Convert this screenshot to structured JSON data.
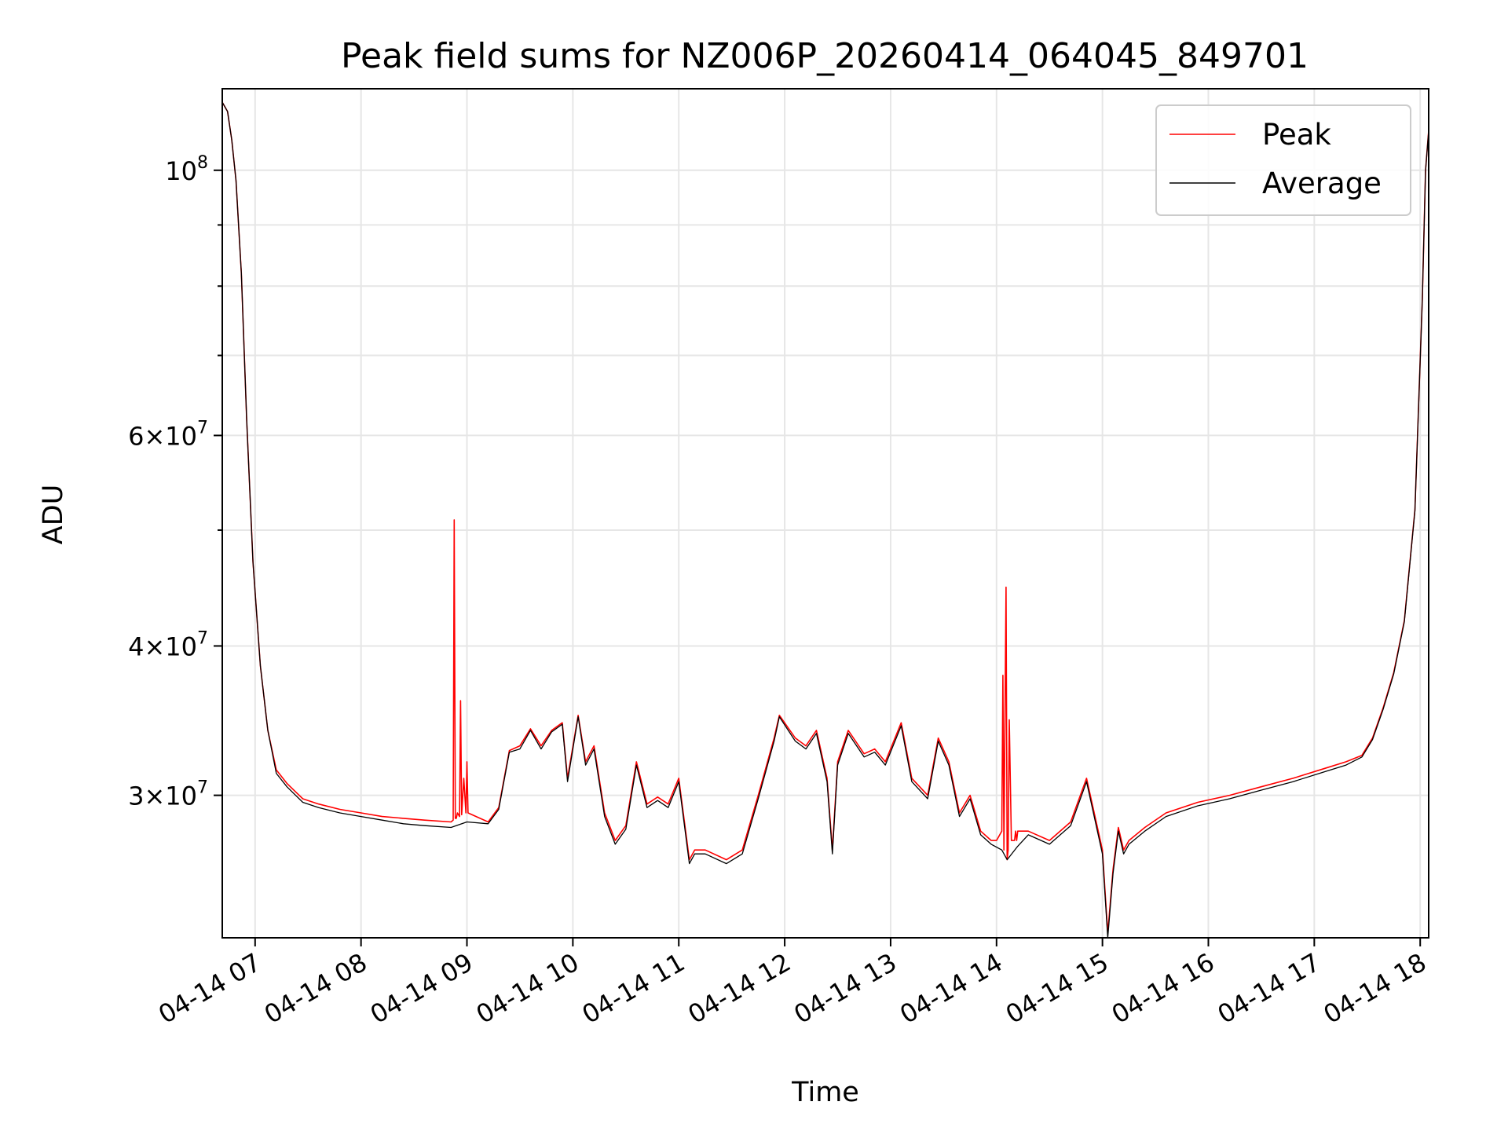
{
  "chart_data": {
    "type": "line",
    "title": "Peak field sums for NZ006P_20260414_064045_849701",
    "xlabel": "Time",
    "ylabel": "ADU",
    "yscale": "log",
    "xlim": [
      6.69,
      18.08
    ],
    "ylim": [
      22800000,
      117000000
    ],
    "grid": true,
    "legend_position": "top-right",
    "x_ticks": [
      {
        "value": 7,
        "label": "04-14 07"
      },
      {
        "value": 8,
        "label": "04-14 08"
      },
      {
        "value": 9,
        "label": "04-14 09"
      },
      {
        "value": 10,
        "label": "04-14 10"
      },
      {
        "value": 11,
        "label": "04-14 11"
      },
      {
        "value": 12,
        "label": "04-14 12"
      },
      {
        "value": 13,
        "label": "04-14 13"
      },
      {
        "value": 14,
        "label": "04-14 14"
      },
      {
        "value": 15,
        "label": "04-14 15"
      },
      {
        "value": 16,
        "label": "04-14 16"
      },
      {
        "value": 17,
        "label": "04-14 17"
      },
      {
        "value": 18,
        "label": "04-14 18"
      }
    ],
    "y_ticks": [
      {
        "value": 100000000,
        "mant": "",
        "base": "10",
        "exp": "8"
      },
      {
        "value": 60000000,
        "mant": "6×",
        "base": "10",
        "exp": "7"
      },
      {
        "value": 40000000,
        "mant": "4×",
        "base": "10",
        "exp": "7"
      },
      {
        "value": 30000000,
        "mant": "3×",
        "base": "10",
        "exp": "7"
      }
    ],
    "y_minor_ticks": [
      50000000,
      70000000,
      80000000,
      90000000
    ],
    "series": [
      {
        "name": "Peak",
        "color": "#ff0000",
        "x": [
          6.69,
          6.74,
          6.78,
          6.82,
          6.87,
          6.92,
          6.98,
          7.05,
          7.12,
          7.2,
          7.3,
          7.45,
          7.6,
          7.8,
          8.0,
          8.2,
          8.4,
          8.6,
          8.85,
          8.87,
          8.88,
          8.89,
          8.9,
          8.91,
          8.93,
          8.94,
          8.95,
          8.97,
          8.99,
          9.0,
          9.01,
          9.2,
          9.3,
          9.4,
          9.5,
          9.6,
          9.7,
          9.8,
          9.9,
          9.95,
          10.05,
          10.12,
          10.2,
          10.3,
          10.4,
          10.5,
          10.6,
          10.7,
          10.8,
          10.9,
          11.0,
          11.1,
          11.15,
          11.25,
          11.45,
          11.6,
          11.75,
          11.9,
          11.95,
          12.1,
          12.2,
          12.3,
          12.4,
          12.45,
          12.5,
          12.6,
          12.75,
          12.85,
          12.95,
          13.1,
          13.2,
          13.35,
          13.45,
          13.55,
          13.65,
          13.75,
          13.85,
          13.95,
          14.0,
          14.05,
          14.06,
          14.07,
          14.09,
          14.1,
          14.11,
          14.12,
          14.14,
          14.17,
          14.18,
          14.19,
          14.2,
          14.3,
          14.5,
          14.7,
          14.85,
          15.0,
          15.05,
          15.1,
          15.15,
          15.2,
          15.25,
          15.4,
          15.6,
          15.9,
          16.2,
          16.5,
          16.8,
          17.1,
          17.3,
          17.45,
          17.55,
          17.65,
          17.75,
          17.85,
          17.95,
          18.02,
          18.05,
          18.08
        ],
        "y": [
          114000000,
          112000000,
          106000000,
          98000000,
          82000000,
          62000000,
          47000000,
          38500000,
          34000000,
          31500000,
          30700000,
          29800000,
          29500000,
          29200000,
          29000000,
          28800000,
          28700000,
          28600000,
          28500000,
          28600000,
          51000000,
          28700000,
          28700000,
          29000000,
          28800000,
          36000000,
          28900000,
          31000000,
          29000000,
          32000000,
          29000000,
          28500000,
          29300000,
          32700000,
          33000000,
          34100000,
          33000000,
          34000000,
          34500000,
          31000000,
          35000000,
          32000000,
          33000000,
          29000000,
          27500000,
          28300000,
          32000000,
          29500000,
          29900000,
          29500000,
          31000000,
          26500000,
          27000000,
          27000000,
          26500000,
          27000000,
          30000000,
          33500000,
          35000000,
          33500000,
          33000000,
          34000000,
          31000000,
          27000000,
          32000000,
          34000000,
          32500000,
          32800000,
          32000000,
          34500000,
          31000000,
          30000000,
          33500000,
          32000000,
          29000000,
          30000000,
          28000000,
          27500000,
          27500000,
          28000000,
          37800000,
          27000000,
          44800000,
          26500000,
          27000000,
          34700000,
          27500000,
          27500000,
          28000000,
          27500000,
          28000000,
          28000000,
          27500000,
          28500000,
          31000000,
          27000000,
          23000000,
          26000000,
          28200000,
          27000000,
          27500000,
          28200000,
          29000000,
          29600000,
          30000000,
          30500000,
          31000000,
          31600000,
          32000000,
          32400000,
          33500000,
          35500000,
          38000000,
          42000000,
          52000000,
          78000000,
          100000000,
          108000000
        ]
      },
      {
        "name": "Average",
        "color": "#000000",
        "x": [
          6.69,
          6.74,
          6.78,
          6.82,
          6.87,
          6.92,
          6.98,
          7.05,
          7.12,
          7.2,
          7.3,
          7.45,
          7.6,
          7.8,
          8.0,
          8.2,
          8.4,
          8.6,
          8.85,
          9.0,
          9.2,
          9.3,
          9.4,
          9.5,
          9.6,
          9.7,
          9.8,
          9.9,
          9.95,
          10.05,
          10.12,
          10.2,
          10.3,
          10.4,
          10.5,
          10.6,
          10.7,
          10.8,
          10.9,
          11.0,
          11.1,
          11.15,
          11.25,
          11.45,
          11.6,
          11.75,
          11.9,
          11.95,
          12.1,
          12.2,
          12.3,
          12.4,
          12.45,
          12.5,
          12.6,
          12.75,
          12.85,
          12.95,
          13.1,
          13.2,
          13.35,
          13.45,
          13.55,
          13.65,
          13.75,
          13.85,
          13.95,
          14.05,
          14.1,
          14.2,
          14.3,
          14.5,
          14.7,
          14.85,
          15.0,
          15.05,
          15.1,
          15.15,
          15.2,
          15.25,
          15.4,
          15.6,
          15.9,
          16.2,
          16.5,
          16.8,
          17.1,
          17.3,
          17.45,
          17.55,
          17.65,
          17.75,
          17.85,
          17.95,
          18.02,
          18.05,
          18.08
        ],
        "y": [
          114000000,
          112000000,
          106000000,
          98000000,
          82000000,
          62000000,
          47000000,
          38500000,
          34000000,
          31300000,
          30500000,
          29600000,
          29300000,
          29000000,
          28800000,
          28600000,
          28400000,
          28300000,
          28200000,
          28500000,
          28400000,
          29200000,
          32600000,
          32800000,
          34000000,
          32800000,
          33900000,
          34400000,
          30800000,
          34900000,
          31800000,
          32800000,
          28800000,
          27300000,
          28100000,
          31800000,
          29300000,
          29700000,
          29300000,
          30800000,
          26300000,
          26800000,
          26800000,
          26300000,
          26800000,
          29800000,
          33300000,
          34900000,
          33300000,
          32800000,
          33800000,
          30800000,
          26800000,
          31800000,
          33800000,
          32300000,
          32600000,
          31800000,
          34300000,
          30800000,
          29800000,
          33300000,
          31800000,
          28800000,
          29800000,
          27800000,
          27300000,
          27000000,
          26500000,
          27200000,
          27800000,
          27300000,
          28300000,
          30800000,
          26800000,
          22800000,
          25800000,
          28000000,
          26800000,
          27300000,
          28000000,
          28800000,
          29400000,
          29800000,
          30300000,
          30800000,
          31400000,
          31800000,
          32300000,
          33400000,
          35400000,
          37900000,
          41900000,
          51900000,
          77900000,
          99900000,
          107900000
        ]
      }
    ]
  }
}
